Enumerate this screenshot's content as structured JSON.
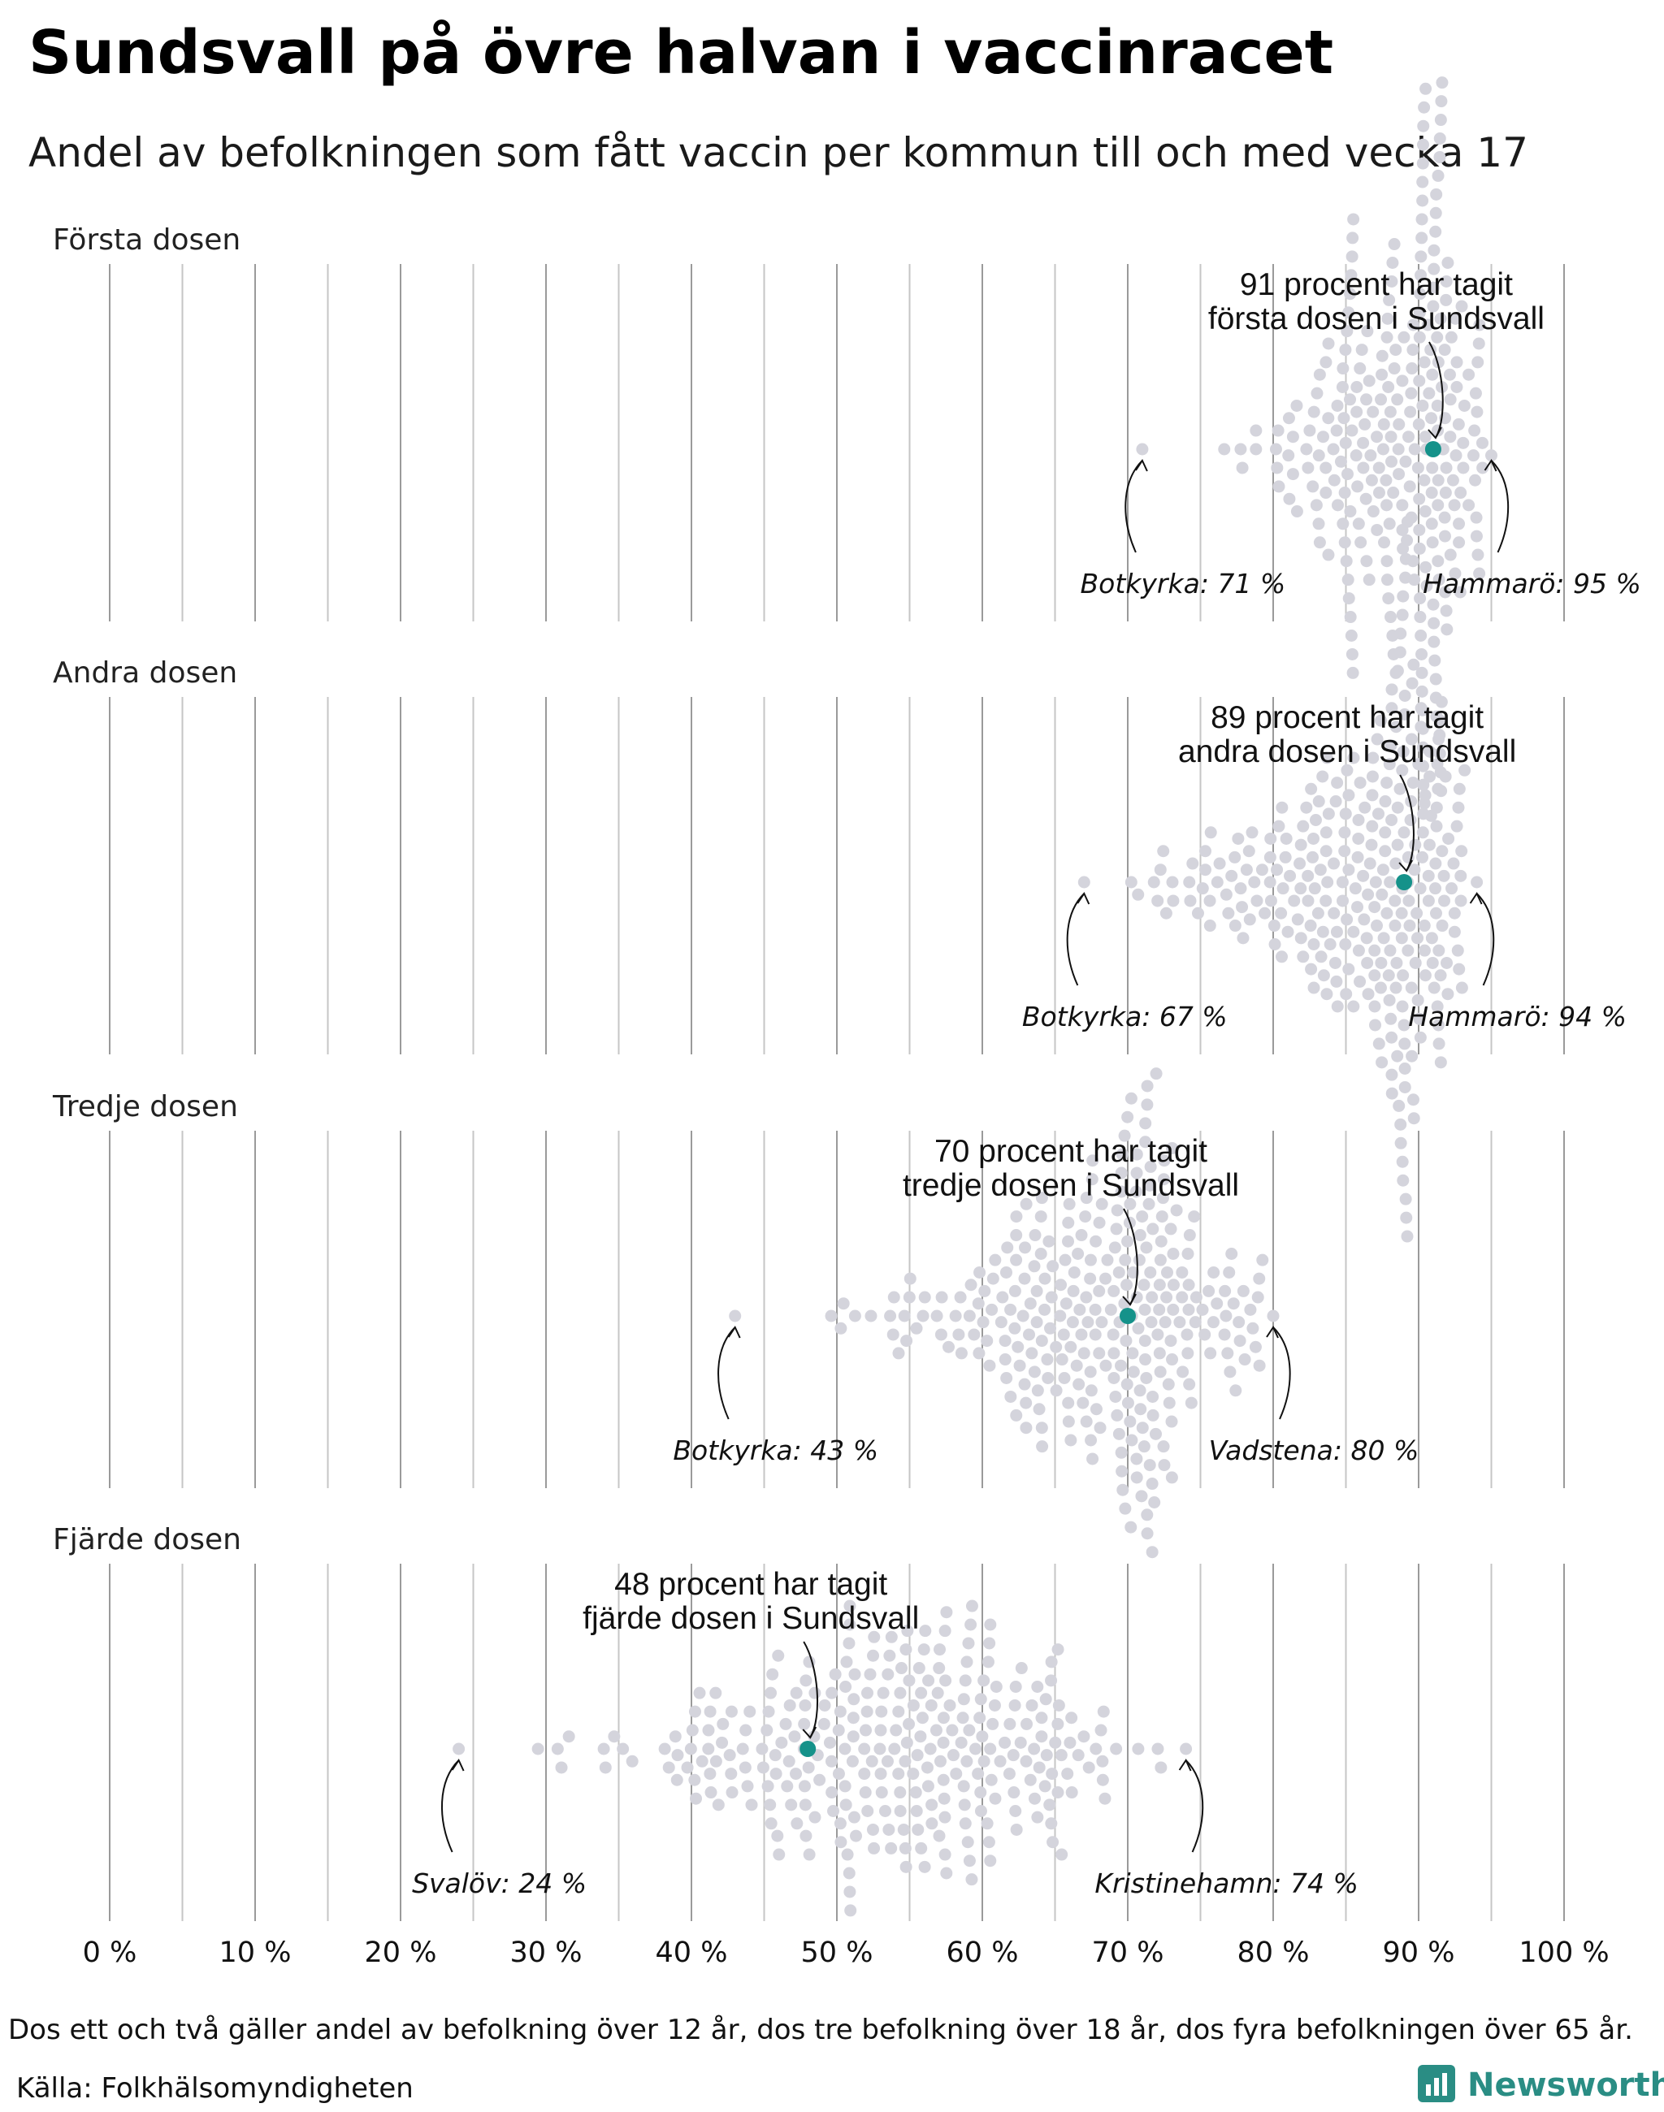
{
  "title": "Sundsvall på övre halvan i vaccinracet",
  "subtitle": "Andel av befolkningen som fått vaccin per kommun till och med vecka 17",
  "footnote": "Dos ett och två gäller andel av befolkning över 12 år, dos tre befolkning över 18 år, dos fyra befolkningen över 65 år.",
  "source": "Källa: Folkhälsomyndigheten",
  "brand": "Newsworthy",
  "colors": {
    "dots": "#d4d4dc",
    "highlight": "#15928a",
    "brand": "#2a8d84"
  },
  "chart_data": {
    "type": "scatter",
    "subtype": "beeswarm",
    "xlim": [
      0,
      100
    ],
    "x_ticks": [
      0,
      10,
      20,
      30,
      40,
      50,
      60,
      70,
      80,
      90,
      100
    ],
    "x_tick_labels": [
      "0 %",
      "10 %",
      "20 %",
      "30 %",
      "40 %",
      "50 %",
      "60 %",
      "70 %",
      "80 %",
      "90 %",
      "100 %"
    ],
    "grid": "vertical lines every 5 %",
    "panels": [
      {
        "label": "Första dosen",
        "highlight": {
          "name": "Sundsvall",
          "value": 91,
          "annotation_lines": [
            "91 procent har tagit",
            "första dosen i Sundsvall"
          ]
        },
        "min": {
          "name": "Botkyrka",
          "value": 71,
          "label": "Botkyrka: 71 %"
        },
        "max": {
          "name": "Hammarö",
          "value": 95,
          "label": "Hammarö: 95 %"
        },
        "distribution": {
          "count": 290,
          "median": 90,
          "min": 71,
          "max": 95
        }
      },
      {
        "label": "Andra dosen",
        "highlight": {
          "name": "Sundsvall",
          "value": 89,
          "annotation_lines": [
            "89 procent har tagit",
            "andra dosen i Sundsvall"
          ]
        },
        "min": {
          "name": "Botkyrka",
          "value": 67,
          "label": "Botkyrka: 67 %"
        },
        "max": {
          "name": "Hammarö",
          "value": 94,
          "label": "Hammarö: 94 %"
        },
        "distribution": {
          "count": 290,
          "median": 88,
          "min": 67,
          "max": 94
        }
      },
      {
        "label": "Tredje dosen",
        "highlight": {
          "name": "Sundsvall",
          "value": 70,
          "annotation_lines": [
            "70 procent har tagit",
            "tredje dosen i Sundsvall"
          ]
        },
        "min": {
          "name": "Botkyrka",
          "value": 43,
          "label": "Botkyrka: 43 %"
        },
        "max": {
          "name": "Vadstena",
          "value": 80,
          "label": "Vadstena: 80 %"
        },
        "distribution": {
          "count": 290,
          "median": 69,
          "min": 43,
          "max": 80
        }
      },
      {
        "label": "Fjärde dosen",
        "highlight": {
          "name": "Sundsvall",
          "value": 48,
          "annotation_lines": [
            "48 procent har tagit",
            "fjärde dosen i Sundsvall"
          ]
        },
        "min": {
          "name": "Svalöv",
          "value": 24,
          "label": "Svalöv: 24 %"
        },
        "max": {
          "name": "Kristinehamn",
          "value": 74,
          "label": "Kristinehamn: 74 %"
        },
        "distribution": {
          "count": 290,
          "median": 54,
          "min": 24,
          "max": 74
        }
      }
    ]
  }
}
